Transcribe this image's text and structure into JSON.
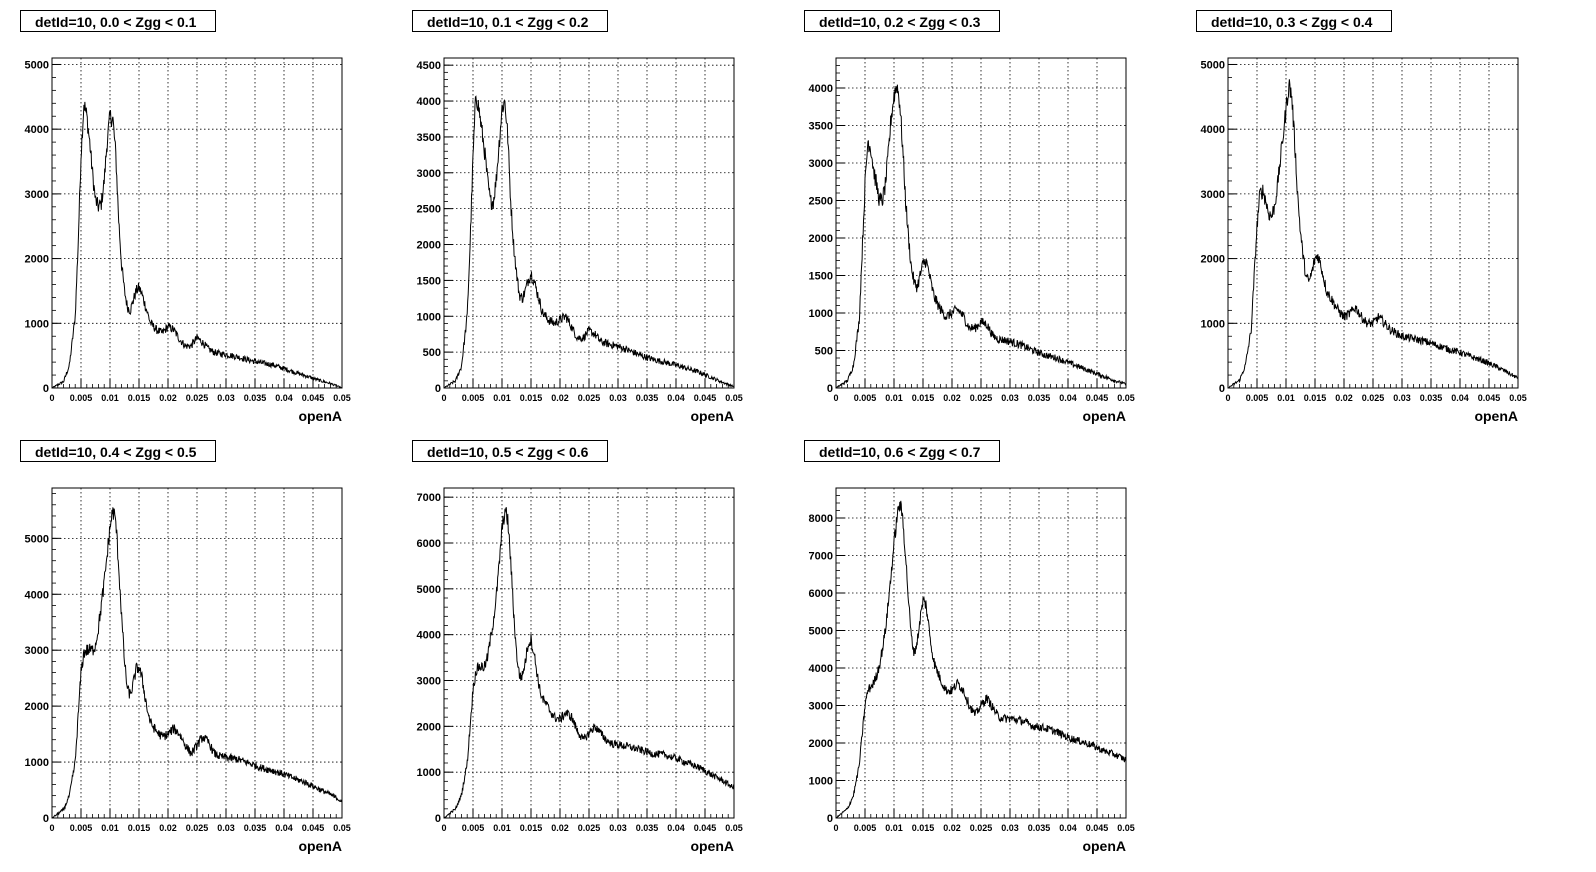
{
  "chart_data": [
    {
      "type": "line",
      "title": "detId=10, 0.0 < Zgg < 0.1",
      "xlabel": "openA",
      "xlim": [
        0,
        0.05
      ],
      "ylim": [
        0,
        5100
      ],
      "yticks": [
        0,
        1000,
        2000,
        3000,
        4000,
        5000
      ],
      "xticks": [
        "0",
        "0.005",
        "0.01",
        "0.015",
        "0.02",
        "0.025",
        "0.03",
        "0.035",
        "0.04",
        "0.045",
        "0.05"
      ],
      "x": [
        0,
        0.002,
        0.003,
        0.004,
        0.0045,
        0.005,
        0.0055,
        0.006,
        0.0065,
        0.007,
        0.0075,
        0.008,
        0.0085,
        0.009,
        0.0095,
        0.01,
        0.0105,
        0.011,
        0.0115,
        0.012,
        0.0125,
        0.013,
        0.0135,
        0.014,
        0.0145,
        0.015,
        0.0155,
        0.016,
        0.0165,
        0.017,
        0.018,
        0.019,
        0.02,
        0.021,
        0.022,
        0.023,
        0.024,
        0.025,
        0.026,
        0.027,
        0.028,
        0.029,
        0.03,
        0.032,
        0.034,
        0.036,
        0.038,
        0.04,
        0.042,
        0.044,
        0.046,
        0.048,
        0.05
      ],
      "y": [
        0,
        100,
        350,
        1100,
        2200,
        3600,
        4400,
        4200,
        3800,
        3300,
        2900,
        2800,
        2850,
        3200,
        3800,
        4200,
        4150,
        3600,
        2600,
        1900,
        1500,
        1250,
        1200,
        1350,
        1500,
        1550,
        1450,
        1300,
        1150,
        1000,
        900,
        850,
        950,
        900,
        750,
        650,
        650,
        780,
        700,
        600,
        550,
        530,
        520,
        480,
        430,
        390,
        360,
        300,
        240,
        180,
        120,
        70,
        0
      ]
    },
    {
      "type": "line",
      "title": "detId=10, 0.1 < Zgg < 0.2",
      "xlabel": "openA",
      "xlim": [
        0,
        0.05
      ],
      "ylim": [
        0,
        4600
      ],
      "yticks": [
        0,
        500,
        1000,
        1500,
        2000,
        2500,
        3000,
        3500,
        4000,
        4500
      ],
      "xticks": [
        "0",
        "0.005",
        "0.01",
        "0.015",
        "0.02",
        "0.025",
        "0.03",
        "0.035",
        "0.04",
        "0.045",
        "0.05"
      ],
      "x": [
        0,
        0.002,
        0.003,
        0.004,
        0.0045,
        0.005,
        0.0055,
        0.006,
        0.0065,
        0.007,
        0.0075,
        0.008,
        0.0085,
        0.009,
        0.0095,
        0.01,
        0.0105,
        0.011,
        0.0115,
        0.012,
        0.0125,
        0.013,
        0.0135,
        0.014,
        0.0145,
        0.015,
        0.0155,
        0.016,
        0.0165,
        0.017,
        0.018,
        0.019,
        0.02,
        0.021,
        0.022,
        0.023,
        0.024,
        0.025,
        0.026,
        0.027,
        0.028,
        0.029,
        0.03,
        0.032,
        0.034,
        0.036,
        0.038,
        0.04,
        0.042,
        0.044,
        0.046,
        0.048,
        0.05
      ],
      "y": [
        0,
        100,
        300,
        1000,
        2000,
        3200,
        4100,
        3900,
        3600,
        3300,
        2900,
        2600,
        2600,
        2900,
        3400,
        3900,
        4000,
        3500,
        2600,
        2000,
        1600,
        1300,
        1250,
        1350,
        1500,
        1600,
        1500,
        1350,
        1200,
        1050,
        950,
        900,
        950,
        1000,
        850,
        700,
        700,
        800,
        750,
        650,
        620,
        600,
        580,
        520,
        450,
        400,
        360,
        320,
        270,
        220,
        150,
        80,
        20
      ]
    },
    {
      "type": "line",
      "title": "detId=10, 0.2 < Zgg < 0.3",
      "xlabel": "openA",
      "xlim": [
        0,
        0.05
      ],
      "ylim": [
        0,
        4400
      ],
      "yticks": [
        0,
        500,
        1000,
        1500,
        2000,
        2500,
        3000,
        3500,
        4000
      ],
      "xticks": [
        "0",
        "0.005",
        "0.01",
        "0.015",
        "0.02",
        "0.025",
        "0.03",
        "0.035",
        "0.04",
        "0.045",
        "0.05"
      ],
      "x": [
        0,
        0.002,
        0.003,
        0.004,
        0.0045,
        0.005,
        0.0055,
        0.006,
        0.0065,
        0.007,
        0.0075,
        0.008,
        0.0085,
        0.009,
        0.0095,
        0.01,
        0.0105,
        0.011,
        0.0115,
        0.012,
        0.0125,
        0.013,
        0.0135,
        0.014,
        0.0145,
        0.015,
        0.0155,
        0.016,
        0.0165,
        0.017,
        0.018,
        0.019,
        0.02,
        0.021,
        0.022,
        0.023,
        0.024,
        0.025,
        0.026,
        0.027,
        0.028,
        0.029,
        0.03,
        0.032,
        0.034,
        0.036,
        0.038,
        0.04,
        0.042,
        0.044,
        0.046,
        0.048,
        0.05
      ],
      "y": [
        0,
        100,
        300,
        900,
        1800,
        2700,
        3300,
        3200,
        2900,
        2700,
        2500,
        2500,
        2700,
        3100,
        3600,
        3900,
        4050,
        3800,
        3200,
        2500,
        2000,
        1600,
        1400,
        1350,
        1500,
        1650,
        1700,
        1550,
        1350,
        1200,
        1050,
        950,
        1000,
        1050,
        950,
        800,
        800,
        880,
        850,
        700,
        650,
        640,
        620,
        570,
        500,
        440,
        400,
        340,
        280,
        220,
        160,
        100,
        50
      ]
    },
    {
      "type": "line",
      "title": "detId=10, 0.3 < Zgg < 0.4",
      "xlabel": "openA",
      "xlim": [
        0,
        0.05
      ],
      "ylim": [
        0,
        5100
      ],
      "yticks": [
        0,
        1000,
        2000,
        3000,
        4000,
        5000
      ],
      "xticks": [
        "0",
        "0.005",
        "0.01",
        "0.015",
        "0.02",
        "0.025",
        "0.03",
        "0.035",
        "0.04",
        "0.045",
        "0.05"
      ],
      "x": [
        0,
        0.002,
        0.003,
        0.004,
        0.0045,
        0.005,
        0.0055,
        0.006,
        0.0065,
        0.007,
        0.0075,
        0.008,
        0.0085,
        0.009,
        0.0095,
        0.01,
        0.0105,
        0.011,
        0.0115,
        0.012,
        0.0125,
        0.013,
        0.0135,
        0.014,
        0.0145,
        0.015,
        0.0155,
        0.016,
        0.0165,
        0.017,
        0.018,
        0.019,
        0.02,
        0.021,
        0.022,
        0.023,
        0.024,
        0.025,
        0.026,
        0.027,
        0.028,
        0.029,
        0.03,
        0.032,
        0.034,
        0.036,
        0.038,
        0.04,
        0.042,
        0.044,
        0.046,
        0.048,
        0.05
      ],
      "y": [
        0,
        120,
        350,
        900,
        1700,
        2500,
        3000,
        3050,
        2900,
        2700,
        2650,
        2800,
        3100,
        3500,
        3900,
        4300,
        4700,
        4500,
        3800,
        3000,
        2400,
        2000,
        1700,
        1650,
        1800,
        2000,
        2050,
        1900,
        1700,
        1500,
        1350,
        1200,
        1100,
        1150,
        1250,
        1100,
        1000,
        1000,
        1100,
        1000,
        900,
        850,
        800,
        760,
        720,
        660,
        600,
        550,
        480,
        420,
        340,
        250,
        150
      ]
    },
    {
      "type": "line",
      "title": "detId=10, 0.4 < Zgg < 0.5",
      "xlabel": "openA",
      "xlim": [
        0,
        0.05
      ],
      "ylim": [
        0,
        5900
      ],
      "yticks": [
        0,
        1000,
        2000,
        3000,
        4000,
        5000
      ],
      "xticks": [
        "0",
        "0.005",
        "0.01",
        "0.015",
        "0.02",
        "0.025",
        "0.03",
        "0.035",
        "0.04",
        "0.045",
        "0.05"
      ],
      "x": [
        0,
        0.002,
        0.003,
        0.004,
        0.0045,
        0.005,
        0.0055,
        0.006,
        0.0065,
        0.007,
        0.0075,
        0.008,
        0.0085,
        0.009,
        0.0095,
        0.01,
        0.0105,
        0.011,
        0.0115,
        0.012,
        0.0125,
        0.013,
        0.0135,
        0.014,
        0.0145,
        0.015,
        0.0155,
        0.016,
        0.0165,
        0.017,
        0.018,
        0.019,
        0.02,
        0.021,
        0.022,
        0.023,
        0.024,
        0.025,
        0.026,
        0.027,
        0.028,
        0.029,
        0.03,
        0.032,
        0.034,
        0.036,
        0.038,
        0.04,
        0.042,
        0.044,
        0.046,
        0.048,
        0.05
      ],
      "y": [
        0,
        150,
        400,
        1000,
        1800,
        2600,
        2950,
        3000,
        3000,
        3000,
        3100,
        3400,
        3800,
        4200,
        4700,
        5200,
        5500,
        5300,
        4500,
        3600,
        2800,
        2300,
        2200,
        2400,
        2650,
        2700,
        2500,
        2200,
        1900,
        1700,
        1550,
        1450,
        1500,
        1600,
        1500,
        1300,
        1150,
        1300,
        1450,
        1350,
        1150,
        1100,
        1080,
        1050,
        980,
        900,
        850,
        780,
        700,
        620,
        520,
        420,
        300
      ]
    },
    {
      "type": "line",
      "title": "detId=10, 0.5 < Zgg < 0.6",
      "xlabel": "openA",
      "xlim": [
        0,
        0.05
      ],
      "ylim": [
        0,
        7200
      ],
      "yticks": [
        0,
        1000,
        2000,
        3000,
        4000,
        5000,
        6000,
        7000
      ],
      "xticks": [
        "0",
        "0.005",
        "0.01",
        "0.015",
        "0.02",
        "0.025",
        "0.03",
        "0.035",
        "0.04",
        "0.045",
        "0.05"
      ],
      "x": [
        0,
        0.002,
        0.003,
        0.004,
        0.0045,
        0.005,
        0.0055,
        0.006,
        0.0065,
        0.007,
        0.0075,
        0.008,
        0.0085,
        0.009,
        0.0095,
        0.01,
        0.0105,
        0.011,
        0.0115,
        0.012,
        0.0125,
        0.013,
        0.0135,
        0.014,
        0.0145,
        0.015,
        0.0155,
        0.016,
        0.0165,
        0.017,
        0.018,
        0.019,
        0.02,
        0.021,
        0.022,
        0.023,
        0.024,
        0.025,
        0.026,
        0.027,
        0.028,
        0.029,
        0.03,
        0.032,
        0.034,
        0.036,
        0.038,
        0.04,
        0.042,
        0.044,
        0.046,
        0.048,
        0.05
      ],
      "y": [
        0,
        200,
        500,
        1200,
        2000,
        2800,
        3200,
        3300,
        3300,
        3300,
        3500,
        3900,
        4300,
        4800,
        5500,
        6300,
        6700,
        6500,
        5600,
        4500,
        3600,
        3100,
        3100,
        3400,
        3800,
        3900,
        3600,
        3200,
        2800,
        2600,
        2400,
        2200,
        2150,
        2300,
        2200,
        1900,
        1700,
        1850,
        2000,
        1850,
        1700,
        1620,
        1600,
        1550,
        1480,
        1400,
        1380,
        1300,
        1200,
        1100,
        950,
        820,
        650
      ]
    },
    {
      "type": "line",
      "title": "detId=10, 0.6 < Zgg < 0.7",
      "xlabel": "openA",
      "xlim": [
        0,
        0.05
      ],
      "ylim": [
        0,
        8800
      ],
      "yticks": [
        0,
        1000,
        2000,
        3000,
        4000,
        5000,
        6000,
        7000,
        8000
      ],
      "xticks": [
        "0",
        "0.005",
        "0.01",
        "0.015",
        "0.02",
        "0.025",
        "0.03",
        "0.035",
        "0.04",
        "0.045",
        "0.05"
      ],
      "x": [
        0,
        0.002,
        0.003,
        0.004,
        0.0045,
        0.005,
        0.0055,
        0.006,
        0.0065,
        0.007,
        0.0075,
        0.008,
        0.0085,
        0.009,
        0.0095,
        0.01,
        0.0105,
        0.011,
        0.0115,
        0.012,
        0.0125,
        0.013,
        0.0135,
        0.014,
        0.0145,
        0.015,
        0.0155,
        0.016,
        0.0165,
        0.017,
        0.018,
        0.019,
        0.02,
        0.021,
        0.022,
        0.023,
        0.024,
        0.025,
        0.026,
        0.027,
        0.028,
        0.029,
        0.03,
        0.032,
        0.034,
        0.036,
        0.038,
        0.04,
        0.042,
        0.044,
        0.046,
        0.048,
        0.05
      ],
      "y": [
        0,
        250,
        600,
        1400,
        2200,
        3000,
        3400,
        3500,
        3600,
        3800,
        4100,
        4500,
        5000,
        5700,
        6500,
        7300,
        8000,
        8400,
        8000,
        7000,
        5800,
        4800,
        4400,
        4700,
        5300,
        5800,
        5700,
        5100,
        4500,
        4100,
        3700,
        3400,
        3400,
        3600,
        3400,
        3000,
        2750,
        3000,
        3200,
        2950,
        2700,
        2650,
        2650,
        2600,
        2450,
        2400,
        2300,
        2150,
        2050,
        1950,
        1800,
        1700,
        1550
      ]
    }
  ]
}
